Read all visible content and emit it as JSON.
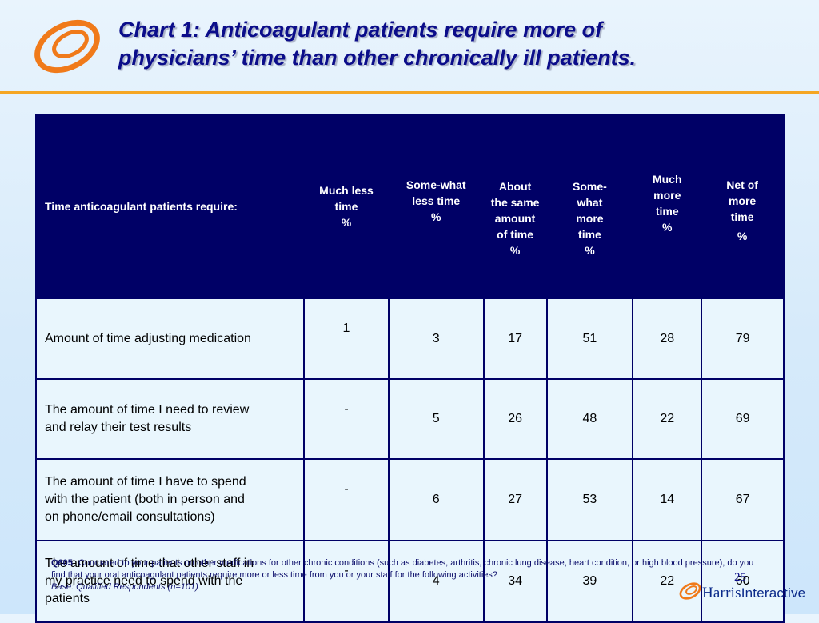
{
  "slide": {
    "title_line1": "Chart 1:  Anticoagulant patients require more of",
    "title_line2": "physicians’ time than other chronically ill patients.",
    "accent_color": "#f5a623",
    "header_color": "#000066",
    "cell_color": "#e9f6fd"
  },
  "table": {
    "row_header": "Time anticoagulant patients require:",
    "columns": [
      {
        "line1": "Much less",
        "line2": "time",
        "line3": "%",
        "line4": "",
        "line5": ""
      },
      {
        "line1": "Some-what",
        "line2": "less time",
        "line3": "%",
        "line4": "",
        "line5": ""
      },
      {
        "line1": "About",
        "line2": "the same",
        "line3": "amount",
        "line4": "of  time",
        "line5": "%"
      },
      {
        "line1": "Some-",
        "line2": "what",
        "line3": "more",
        "line4": "time",
        "line5": "%"
      },
      {
        "line1": "Much",
        "line2": "more",
        "line3": "time",
        "line4": "%",
        "line5": ""
      },
      {
        "line1": "Net of",
        "line2": "more",
        "line3": "time",
        "line4": "%",
        "line5": ""
      }
    ],
    "rows": [
      {
        "label_l1": "Amount of time adjusting medication",
        "label_l2": "",
        "label_l3": "",
        "values": [
          "1",
          "3",
          "17",
          "51",
          "28",
          "79"
        ]
      },
      {
        "label_l1": "The amount of time I need to review",
        "label_l2": "and relay their test results",
        "label_l3": "",
        "values": [
          "-",
          "5",
          "26",
          "48",
          "22",
          "69"
        ]
      },
      {
        "label_l1": "The amount of time I have to spend",
        "label_l2": "with the patient (both in person and",
        "label_l3": "on phone/email consultations)",
        "values": [
          "-",
          "6",
          "27",
          "53",
          "14",
          "67"
        ]
      },
      {
        "label_l1": "The amount of time that other staff in",
        "label_l2": "my practice need to spend with the",
        "label_l3": "patients",
        "values": [
          "-",
          "4",
          "34",
          "39",
          "22",
          "60"
        ]
      }
    ]
  },
  "footnote": {
    "question_id": "Q605",
    "question_text": "Compared to your patients on other medications for other chronic conditions (such as diabetes, arthritis, chronic lung disease, heart condition, or high blood pressure), do you find that your oral anticoagulant patients require more or less time from you or your staff for the following activities?",
    "base": "Base:   Qualified Respondents (n=101)"
  },
  "page_number": "25",
  "brand": {
    "part1": "Harris",
    "part2": "Interactive",
    "logo_icon": "harris-interactive-swirl-icon"
  }
}
